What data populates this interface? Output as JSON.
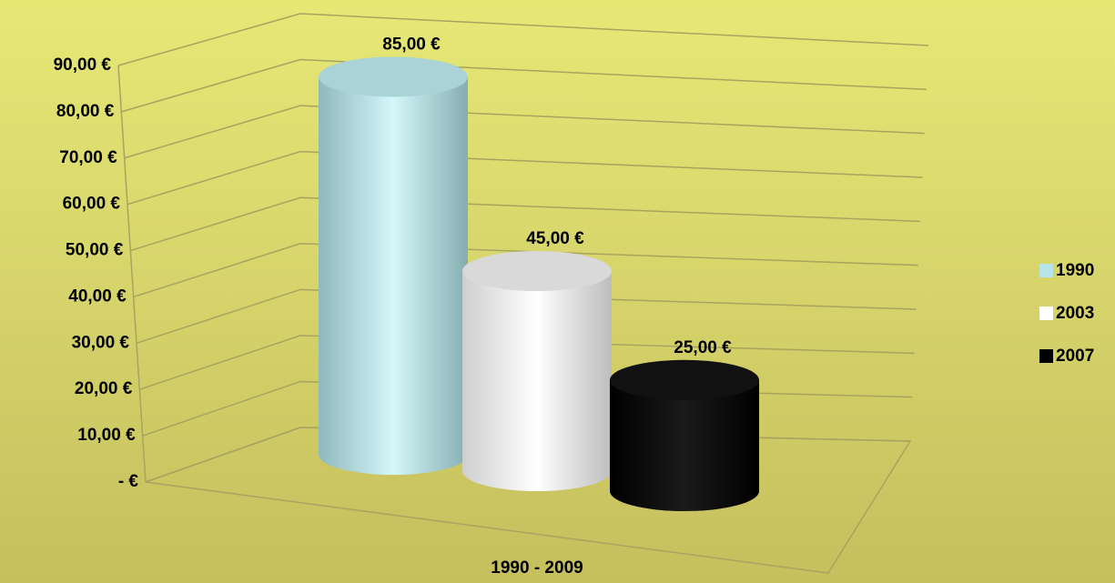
{
  "chart_data": {
    "type": "bar3d",
    "categories": [
      "1990 - 2009"
    ],
    "series": [
      {
        "name": "1990",
        "color": "#b7e4e8",
        "values": [
          85
        ],
        "value_labels": [
          "85,00 €"
        ]
      },
      {
        "name": "2003",
        "color": "#ffffff",
        "values": [
          45
        ],
        "value_labels": [
          "45,00 €"
        ]
      },
      {
        "name": "2007",
        "color": "#000000",
        "values": [
          25
        ],
        "value_labels": [
          "25,00 €"
        ]
      }
    ],
    "ylim": [
      0,
      90
    ],
    "yticks": [
      {
        "value": 0,
        "label": "-  €"
      },
      {
        "value": 10,
        "label": "10,00 €"
      },
      {
        "value": 20,
        "label": "20,00 €"
      },
      {
        "value": 30,
        "label": "30,00 €"
      },
      {
        "value": 40,
        "label": "40,00 €"
      },
      {
        "value": 50,
        "label": "50,00 €"
      },
      {
        "value": 60,
        "label": "60,00 €"
      },
      {
        "value": 70,
        "label": "70,00 €"
      },
      {
        "value": 80,
        "label": "80,00 €"
      },
      {
        "value": 90,
        "label": "90,00 €"
      }
    ],
    "grid": true,
    "legend": "right"
  }
}
